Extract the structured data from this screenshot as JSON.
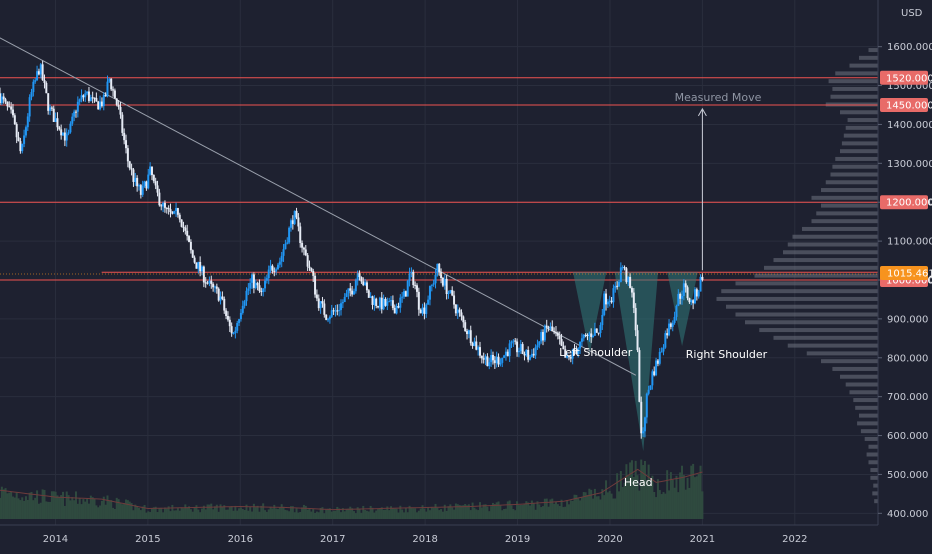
{
  "chart_data": {
    "type": "candlestick",
    "currency_label": "USD",
    "y_axis": {
      "min": 370,
      "max": 1720,
      "ticks": [
        400,
        500,
        600,
        700,
        800,
        900,
        1000,
        1100,
        1200,
        1300,
        1400,
        1500,
        1600
      ],
      "tick_labels": [
        "400.000",
        "500.000",
        "600.000",
        "700.000",
        "800.000",
        "900.000",
        "1000.000",
        "1100.000",
        "1200.000",
        "1300.000",
        "1400.000",
        "1500.000",
        "1600.000"
      ]
    },
    "x_axis": {
      "ticks": [
        2014,
        2015,
        2016,
        2017,
        2018,
        2019,
        2020,
        2021,
        2022
      ],
      "tick_labels": [
        "2014",
        "2015",
        "2016",
        "2017",
        "2018",
        "2019",
        "2020",
        "2021",
        "2022"
      ],
      "range": [
        2013.4,
        2022.9
      ]
    },
    "price_path": [
      [
        2013.4,
        1480
      ],
      [
        2013.55,
        1420
      ],
      [
        2013.65,
        1320
      ],
      [
        2013.75,
        1470
      ],
      [
        2013.85,
        1550
      ],
      [
        2013.95,
        1440
      ],
      [
        2014.05,
        1400
      ],
      [
        2014.15,
        1360
      ],
      [
        2014.25,
        1450
      ],
      [
        2014.35,
        1480
      ],
      [
        2014.45,
        1450
      ],
      [
        2014.55,
        1460
      ],
      [
        2014.6,
        1520
      ],
      [
        2014.7,
        1440
      ],
      [
        2014.8,
        1310
      ],
      [
        2014.88,
        1250
      ],
      [
        2014.95,
        1220
      ],
      [
        2015.0,
        1250
      ],
      [
        2015.05,
        1280
      ],
      [
        2015.1,
        1230
      ],
      [
        2015.2,
        1180
      ],
      [
        2015.3,
        1160
      ],
      [
        2015.35,
        1180
      ],
      [
        2015.45,
        1100
      ],
      [
        2015.5,
        1060
      ],
      [
        2015.6,
        1020
      ],
      [
        2015.7,
        980
      ],
      [
        2015.8,
        960
      ],
      [
        2015.9,
        880
      ],
      [
        2015.95,
        860
      ],
      [
        2016.05,
        950
      ],
      [
        2016.15,
        1000
      ],
      [
        2016.25,
        960
      ],
      [
        2016.35,
        1030
      ],
      [
        2016.45,
        1050
      ],
      [
        2016.55,
        1130
      ],
      [
        2016.6,
        1170
      ],
      [
        2016.7,
        1080
      ],
      [
        2016.8,
        1010
      ],
      [
        2016.85,
        950
      ],
      [
        2016.95,
        910
      ],
      [
        2017.05,
        920
      ],
      [
        2017.15,
        950
      ],
      [
        2017.25,
        985
      ],
      [
        2017.3,
        1030
      ],
      [
        2017.4,
        960
      ],
      [
        2017.5,
        940
      ],
      [
        2017.6,
        935
      ],
      [
        2017.7,
        930
      ],
      [
        2017.8,
        960
      ],
      [
        2017.85,
        1010
      ],
      [
        2017.9,
        1000
      ],
      [
        2017.95,
        940
      ],
      [
        2018.0,
        920
      ],
      [
        2018.1,
        990
      ],
      [
        2018.15,
        1030
      ],
      [
        2018.25,
        980
      ],
      [
        2018.35,
        930
      ],
      [
        2018.45,
        880
      ],
      [
        2018.55,
        840
      ],
      [
        2018.65,
        800
      ],
      [
        2018.75,
        790
      ],
      [
        2018.85,
        800
      ],
      [
        2018.95,
        830
      ],
      [
        2019.05,
        820
      ],
      [
        2019.15,
        800
      ],
      [
        2019.25,
        840
      ],
      [
        2019.35,
        880
      ],
      [
        2019.45,
        850
      ],
      [
        2019.55,
        790
      ],
      [
        2019.65,
        820
      ],
      [
        2019.75,
        850
      ],
      [
        2019.85,
        870
      ],
      [
        2019.9,
        860
      ],
      [
        2019.95,
        950
      ],
      [
        2020.05,
        960
      ],
      [
        2020.1,
        990
      ],
      [
        2020.15,
        1040
      ],
      [
        2020.22,
        990
      ],
      [
        2020.28,
        940
      ],
      [
        2020.32,
        800
      ],
      [
        2020.36,
        580
      ],
      [
        2020.42,
        700
      ],
      [
        2020.48,
        760
      ],
      [
        2020.55,
        800
      ],
      [
        2020.62,
        860
      ],
      [
        2020.7,
        900
      ],
      [
        2020.75,
        950
      ],
      [
        2020.82,
        980
      ],
      [
        2020.9,
        940
      ],
      [
        2020.98,
        980
      ],
      [
        2021.02,
        1015
      ]
    ],
    "volume_level": [
      [
        2013.4,
        55
      ],
      [
        2014.0,
        42
      ],
      [
        2014.5,
        38
      ],
      [
        2015.0,
        20
      ],
      [
        2015.5,
        22
      ],
      [
        2016.0,
        24
      ],
      [
        2016.5,
        22
      ],
      [
        2017.0,
        18
      ],
      [
        2017.5,
        20
      ],
      [
        2018.0,
        22
      ],
      [
        2018.5,
        24
      ],
      [
        2019.0,
        28
      ],
      [
        2019.5,
        34
      ],
      [
        2019.9,
        50
      ],
      [
        2020.3,
        95
      ],
      [
        2020.5,
        70
      ],
      [
        2020.8,
        80
      ],
      [
        2021.0,
        90
      ]
    ],
    "trendline": {
      "from": [
        2013.3,
        1635
      ],
      "to": [
        2020.28,
        755
      ]
    },
    "horizontal_levels": [
      {
        "value": 1520,
        "label": "1520.000"
      },
      {
        "value": 1450,
        "label": "1450.000"
      },
      {
        "value": 1200,
        "label": "1200.000"
      },
      {
        "value": 1000,
        "label": "1000.000"
      }
    ],
    "neckline": 1020,
    "current_price": {
      "value": 1015.461,
      "label": "1015.461"
    },
    "pattern": {
      "left_shoulder": [
        [
          2019.6,
          1020
        ],
        [
          2019.78,
          810
        ],
        [
          2019.96,
          1020
        ]
      ],
      "head": [
        [
          2020.05,
          1020
        ],
        [
          2020.36,
          560
        ],
        [
          2020.52,
          1020
        ]
      ],
      "right_shoulder": [
        [
          2020.62,
          1020
        ],
        [
          2020.78,
          830
        ],
        [
          2020.95,
          1020
        ]
      ]
    },
    "measured_move": {
      "from": [
        2021.0,
        1025
      ],
      "to": [
        2021.0,
        1440
      ]
    },
    "annotations": [
      {
        "text": "Measured Move",
        "x": 2020.7,
        "y": 1460
      },
      {
        "text": "Left Shoulder",
        "x": 2019.45,
        "y": 805
      },
      {
        "text": "Right Shoulder",
        "x": 2020.82,
        "y": 800
      },
      {
        "text": "Head",
        "x": 2020.15,
        "y": 470
      }
    ],
    "volume_profile": [
      [
        430,
        4
      ],
      [
        450,
        6
      ],
      [
        470,
        5
      ],
      [
        490,
        8
      ],
      [
        510,
        8
      ],
      [
        530,
        10
      ],
      [
        550,
        12
      ],
      [
        570,
        10
      ],
      [
        590,
        14
      ],
      [
        610,
        18
      ],
      [
        630,
        22
      ],
      [
        650,
        20
      ],
      [
        670,
        24
      ],
      [
        690,
        26
      ],
      [
        710,
        30
      ],
      [
        730,
        34
      ],
      [
        750,
        40
      ],
      [
        770,
        48
      ],
      [
        790,
        60
      ],
      [
        810,
        75
      ],
      [
        830,
        95
      ],
      [
        850,
        110
      ],
      [
        870,
        125
      ],
      [
        890,
        140
      ],
      [
        910,
        150
      ],
      [
        930,
        160
      ],
      [
        950,
        170
      ],
      [
        970,
        165
      ],
      [
        990,
        150
      ],
      [
        1010,
        130
      ],
      [
        1030,
        120
      ],
      [
        1050,
        110
      ],
      [
        1070,
        100
      ],
      [
        1090,
        95
      ],
      [
        1110,
        90
      ],
      [
        1130,
        80
      ],
      [
        1150,
        70
      ],
      [
        1170,
        65
      ],
      [
        1190,
        60
      ],
      [
        1210,
        70
      ],
      [
        1230,
        60
      ],
      [
        1250,
        55
      ],
      [
        1270,
        50
      ],
      [
        1290,
        48
      ],
      [
        1310,
        45
      ],
      [
        1330,
        40
      ],
      [
        1350,
        38
      ],
      [
        1370,
        36
      ],
      [
        1390,
        34
      ],
      [
        1410,
        32
      ],
      [
        1430,
        40
      ],
      [
        1450,
        55
      ],
      [
        1470,
        50
      ],
      [
        1490,
        48
      ],
      [
        1510,
        52
      ],
      [
        1530,
        45
      ],
      [
        1550,
        30
      ],
      [
        1570,
        20
      ],
      [
        1590,
        10
      ]
    ],
    "colors": {
      "background": "#1e2130",
      "grid": "#2a2e3d",
      "up": "#2196f3",
      "down": "#e6ebf5",
      "level": "#ef5350",
      "level_tag": "#e86b68",
      "price_tag": "#f7931e",
      "trendline": "#9aa0ac",
      "pattern_fill": "#2f7a7a",
      "volume": "#2f4a3f",
      "volume_ma": "#6e3b3b",
      "profile": "#6f7482",
      "measured": "#c9ccd6"
    }
  }
}
